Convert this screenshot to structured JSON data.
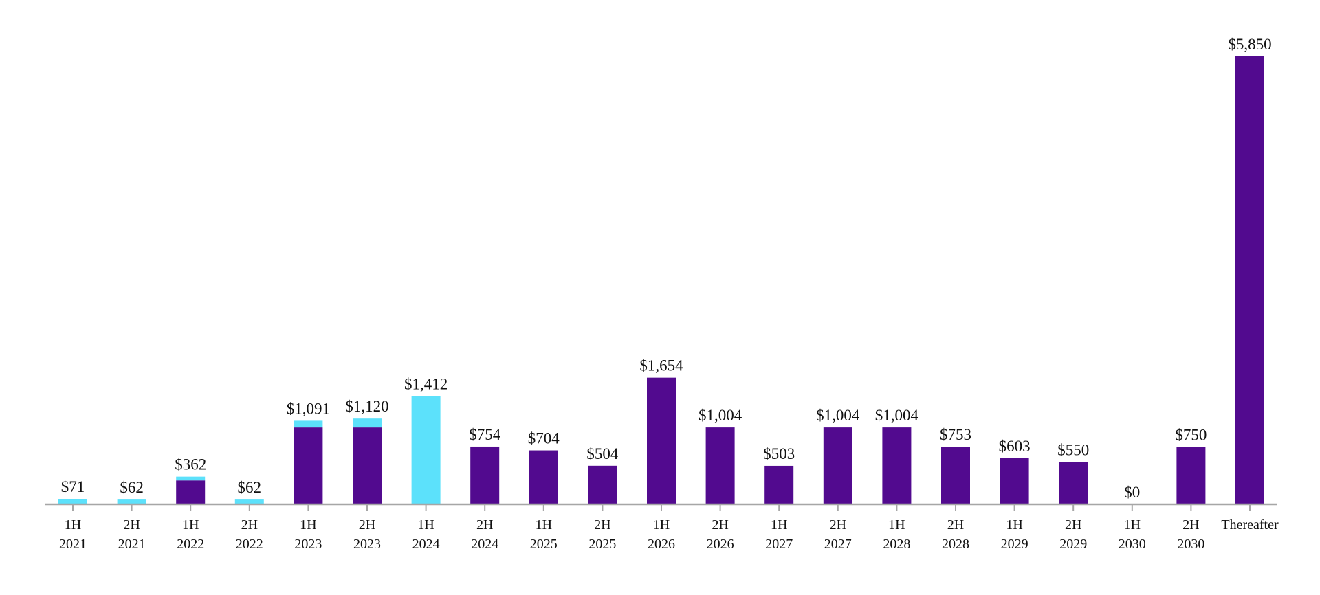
{
  "chart_data": {
    "type": "bar",
    "stacked": true,
    "title": "",
    "xlabel": "",
    "ylabel": "",
    "ylim": [
      0,
      5850
    ],
    "grid": false,
    "legend": "none",
    "categories": [
      [
        "1H",
        "2021"
      ],
      [
        "2H",
        "2021"
      ],
      [
        "1H",
        "2022"
      ],
      [
        "2H",
        "2022"
      ],
      [
        "1H",
        "2023"
      ],
      [
        "2H",
        "2023"
      ],
      [
        "1H",
        "2024"
      ],
      [
        "2H",
        "2024"
      ],
      [
        "1H",
        "2025"
      ],
      [
        "2H",
        "2025"
      ],
      [
        "1H",
        "2026"
      ],
      [
        "2H",
        "2026"
      ],
      [
        "1H",
        "2027"
      ],
      [
        "2H",
        "2027"
      ],
      [
        "1H",
        "2028"
      ],
      [
        "2H",
        "2028"
      ],
      [
        "1H",
        "2029"
      ],
      [
        "2H",
        "2029"
      ],
      [
        "1H",
        "2030"
      ],
      [
        "2H",
        "2030"
      ],
      [
        "Thereafter"
      ]
    ],
    "series": [
      {
        "name": "Purple segment",
        "color": "#520A8F",
        "values": [
          0,
          0,
          312,
          0,
          1004,
          1004,
          0,
          754,
          704,
          504,
          1654,
          1004,
          503,
          1004,
          1004,
          753,
          603,
          550,
          0,
          750,
          5850
        ]
      },
      {
        "name": "Cyan segment",
        "color": "#5CE1FB",
        "values": [
          71,
          62,
          50,
          62,
          87,
          116,
          1412,
          0,
          0,
          0,
          0,
          0,
          0,
          0,
          0,
          0,
          0,
          0,
          0,
          0,
          0
        ]
      }
    ],
    "totals": [
      71,
      62,
      362,
      62,
      1091,
      1120,
      1412,
      754,
      704,
      504,
      1654,
      1004,
      503,
      1004,
      1004,
      753,
      603,
      550,
      0,
      750,
      5850
    ],
    "data_labels": [
      "$71",
      "$62",
      "$362",
      "$62",
      "$1,091",
      "$1,120",
      "$1,412",
      "$754",
      "$704",
      "$504",
      "$1,654",
      "$1,004",
      "$503",
      "$1,004",
      "$1,004",
      "$753",
      "$603",
      "$550",
      "$0",
      "$750",
      "$5,850"
    ],
    "axis_color": "#A6A6A6"
  }
}
